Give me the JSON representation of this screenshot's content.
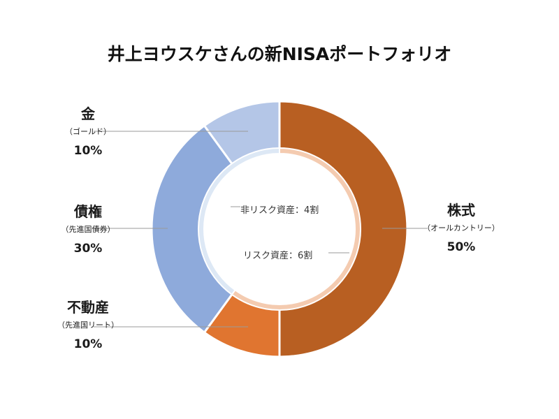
{
  "chart_data": {
    "type": "pie",
    "subtype": "nested-donut",
    "title": "井上ヨウスケさんの新NISAポートフォリオ",
    "outer_ring": [
      {
        "name": "株式",
        "sub": "（オールカントリー）",
        "value": 50,
        "value_label": "50%",
        "color": "#b85f22"
      },
      {
        "name": "不動産",
        "sub": "（先進国リート）",
        "value": 10,
        "value_label": "10%",
        "color": "#e07530"
      },
      {
        "name": "債権",
        "sub": "（先進国債券）",
        "value": 30,
        "value_label": "30%",
        "color": "#8eaadb"
      },
      {
        "name": "金",
        "sub": "（ゴールド）",
        "value": 10,
        "value_label": "10%",
        "color": "#b4c6e7"
      }
    ],
    "inner_ring": [
      {
        "name": "リスク資産",
        "label": "リスク資産：6割",
        "value": 60,
        "color": "#f4cbb0"
      },
      {
        "name": "非リスク資産",
        "label": "非リスク資産：4割",
        "value": 40,
        "color": "#dde8f5"
      }
    ]
  }
}
